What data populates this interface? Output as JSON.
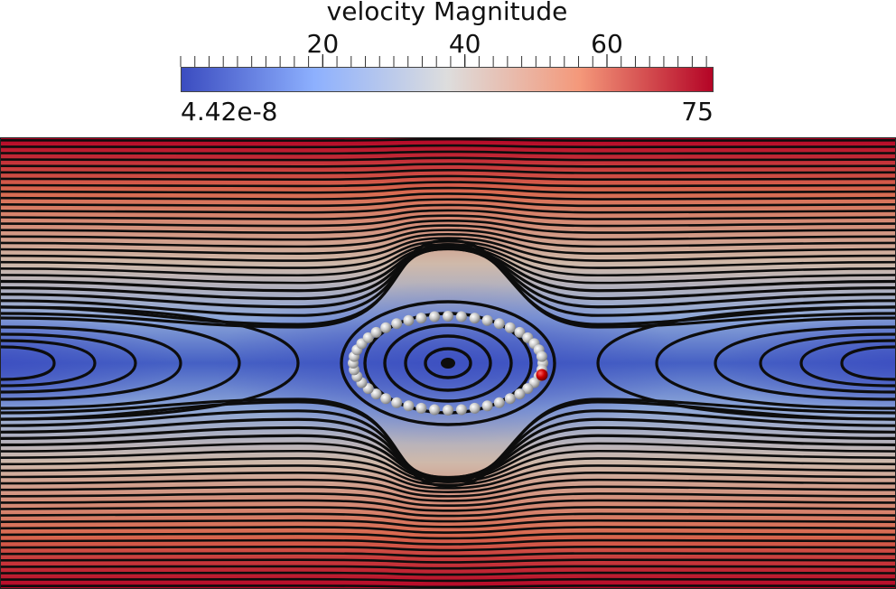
{
  "colorbar": {
    "title": "velocity Magnitude",
    "min_label": "4.42e-8",
    "max_label": "75",
    "range": [
      0,
      75
    ],
    "major_ticks": [
      {
        "value": 20,
        "label": "20"
      },
      {
        "value": 40,
        "label": "40"
      },
      {
        "value": 60,
        "label": "60"
      }
    ],
    "minor_tick_step": 2,
    "colors": [
      "#3b4cc0",
      "#8db0fe",
      "#dddddd",
      "#f4987a",
      "#b40426"
    ]
  },
  "visualization": {
    "streamline_color": "#0d0d0d",
    "particle_color": "#c0c0c0",
    "highlight_particle_color": "#cc0000",
    "particle_count": 44
  }
}
